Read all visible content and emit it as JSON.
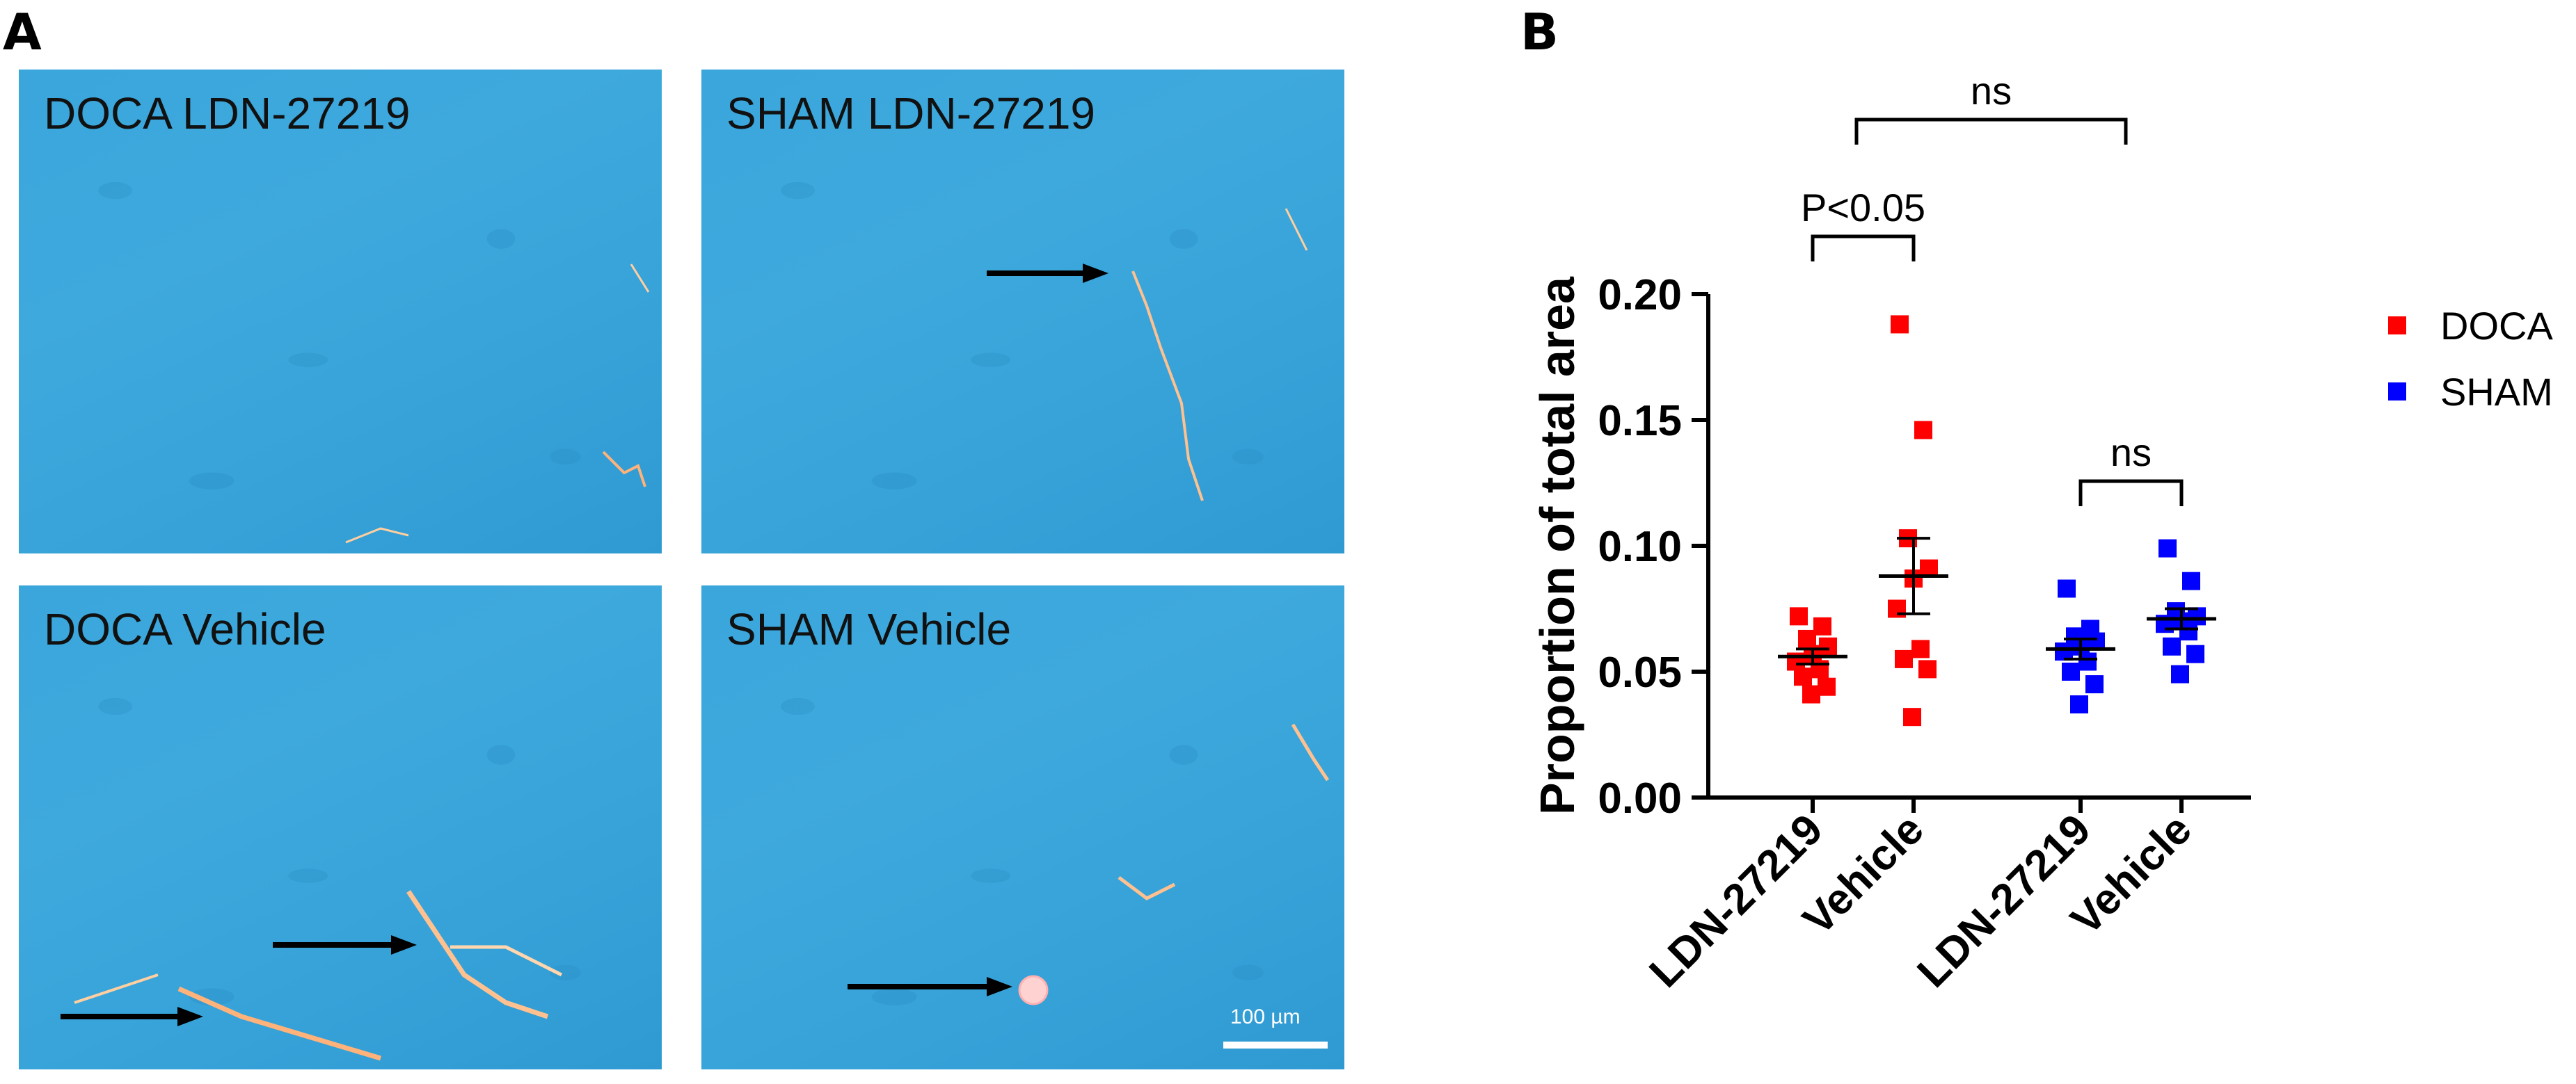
{
  "panels": {
    "a_letter": "A",
    "b_letter": "B"
  },
  "micrographs": [
    {
      "label": "DOCA LDN-27219"
    },
    {
      "label": "SHAM LDN-27219"
    },
    {
      "label": "DOCA Vehicle"
    },
    {
      "label": "SHAM Vehicle"
    }
  ],
  "scalebar": {
    "label": "100 µm"
  },
  "colors": {
    "doca": "#ff0000",
    "sham": "#0000ff",
    "tissue": "#3aa6dc"
  },
  "chart_data": {
    "type": "scatter",
    "title": "",
    "xlabel": "",
    "ylabel": "Proportion of total area",
    "ylim": [
      0,
      0.2
    ],
    "yticks": [
      "0.00",
      "0.05",
      "0.10",
      "0.15",
      "0.20"
    ],
    "categories": [
      "LDN-27219",
      "Vehicle",
      "LDN-27219",
      "Vehicle"
    ],
    "grid": false,
    "legend": {
      "position": "top-right",
      "entries": [
        {
          "name": "DOCA",
          "color": "#ff0000"
        },
        {
          "name": "SHAM",
          "color": "#0000ff"
        }
      ]
    },
    "groups": [
      {
        "category": "LDN-27219",
        "series": "DOCA",
        "mean": 0.056,
        "sem": 0.003,
        "values": [
          0.072,
          0.068,
          0.063,
          0.06,
          0.057,
          0.054,
          0.051,
          0.048,
          0.044,
          0.041
        ]
      },
      {
        "category": "Vehicle",
        "series": "DOCA",
        "mean": 0.088,
        "sem": 0.015,
        "values": [
          0.188,
          0.146,
          0.103,
          0.091,
          0.087,
          0.075,
          0.059,
          0.055,
          0.051,
          0.032
        ]
      },
      {
        "category": "LDN-27219",
        "series": "SHAM",
        "mean": 0.059,
        "sem": 0.004,
        "values": [
          0.083,
          0.067,
          0.064,
          0.062,
          0.06,
          0.058,
          0.054,
          0.05,
          0.045,
          0.037
        ]
      },
      {
        "category": "Vehicle",
        "series": "SHAM",
        "mean": 0.071,
        "sem": 0.004,
        "values": [
          0.099,
          0.086,
          0.074,
          0.072,
          0.07,
          0.069,
          0.066,
          0.06,
          0.057,
          0.049
        ]
      }
    ],
    "annotations": [
      {
        "text": "P<0.05",
        "from": 0,
        "to": 1
      },
      {
        "text": "ns",
        "from": 2,
        "to": 3
      },
      {
        "text": "ns",
        "from": 0.5,
        "to": 2.5
      }
    ]
  }
}
